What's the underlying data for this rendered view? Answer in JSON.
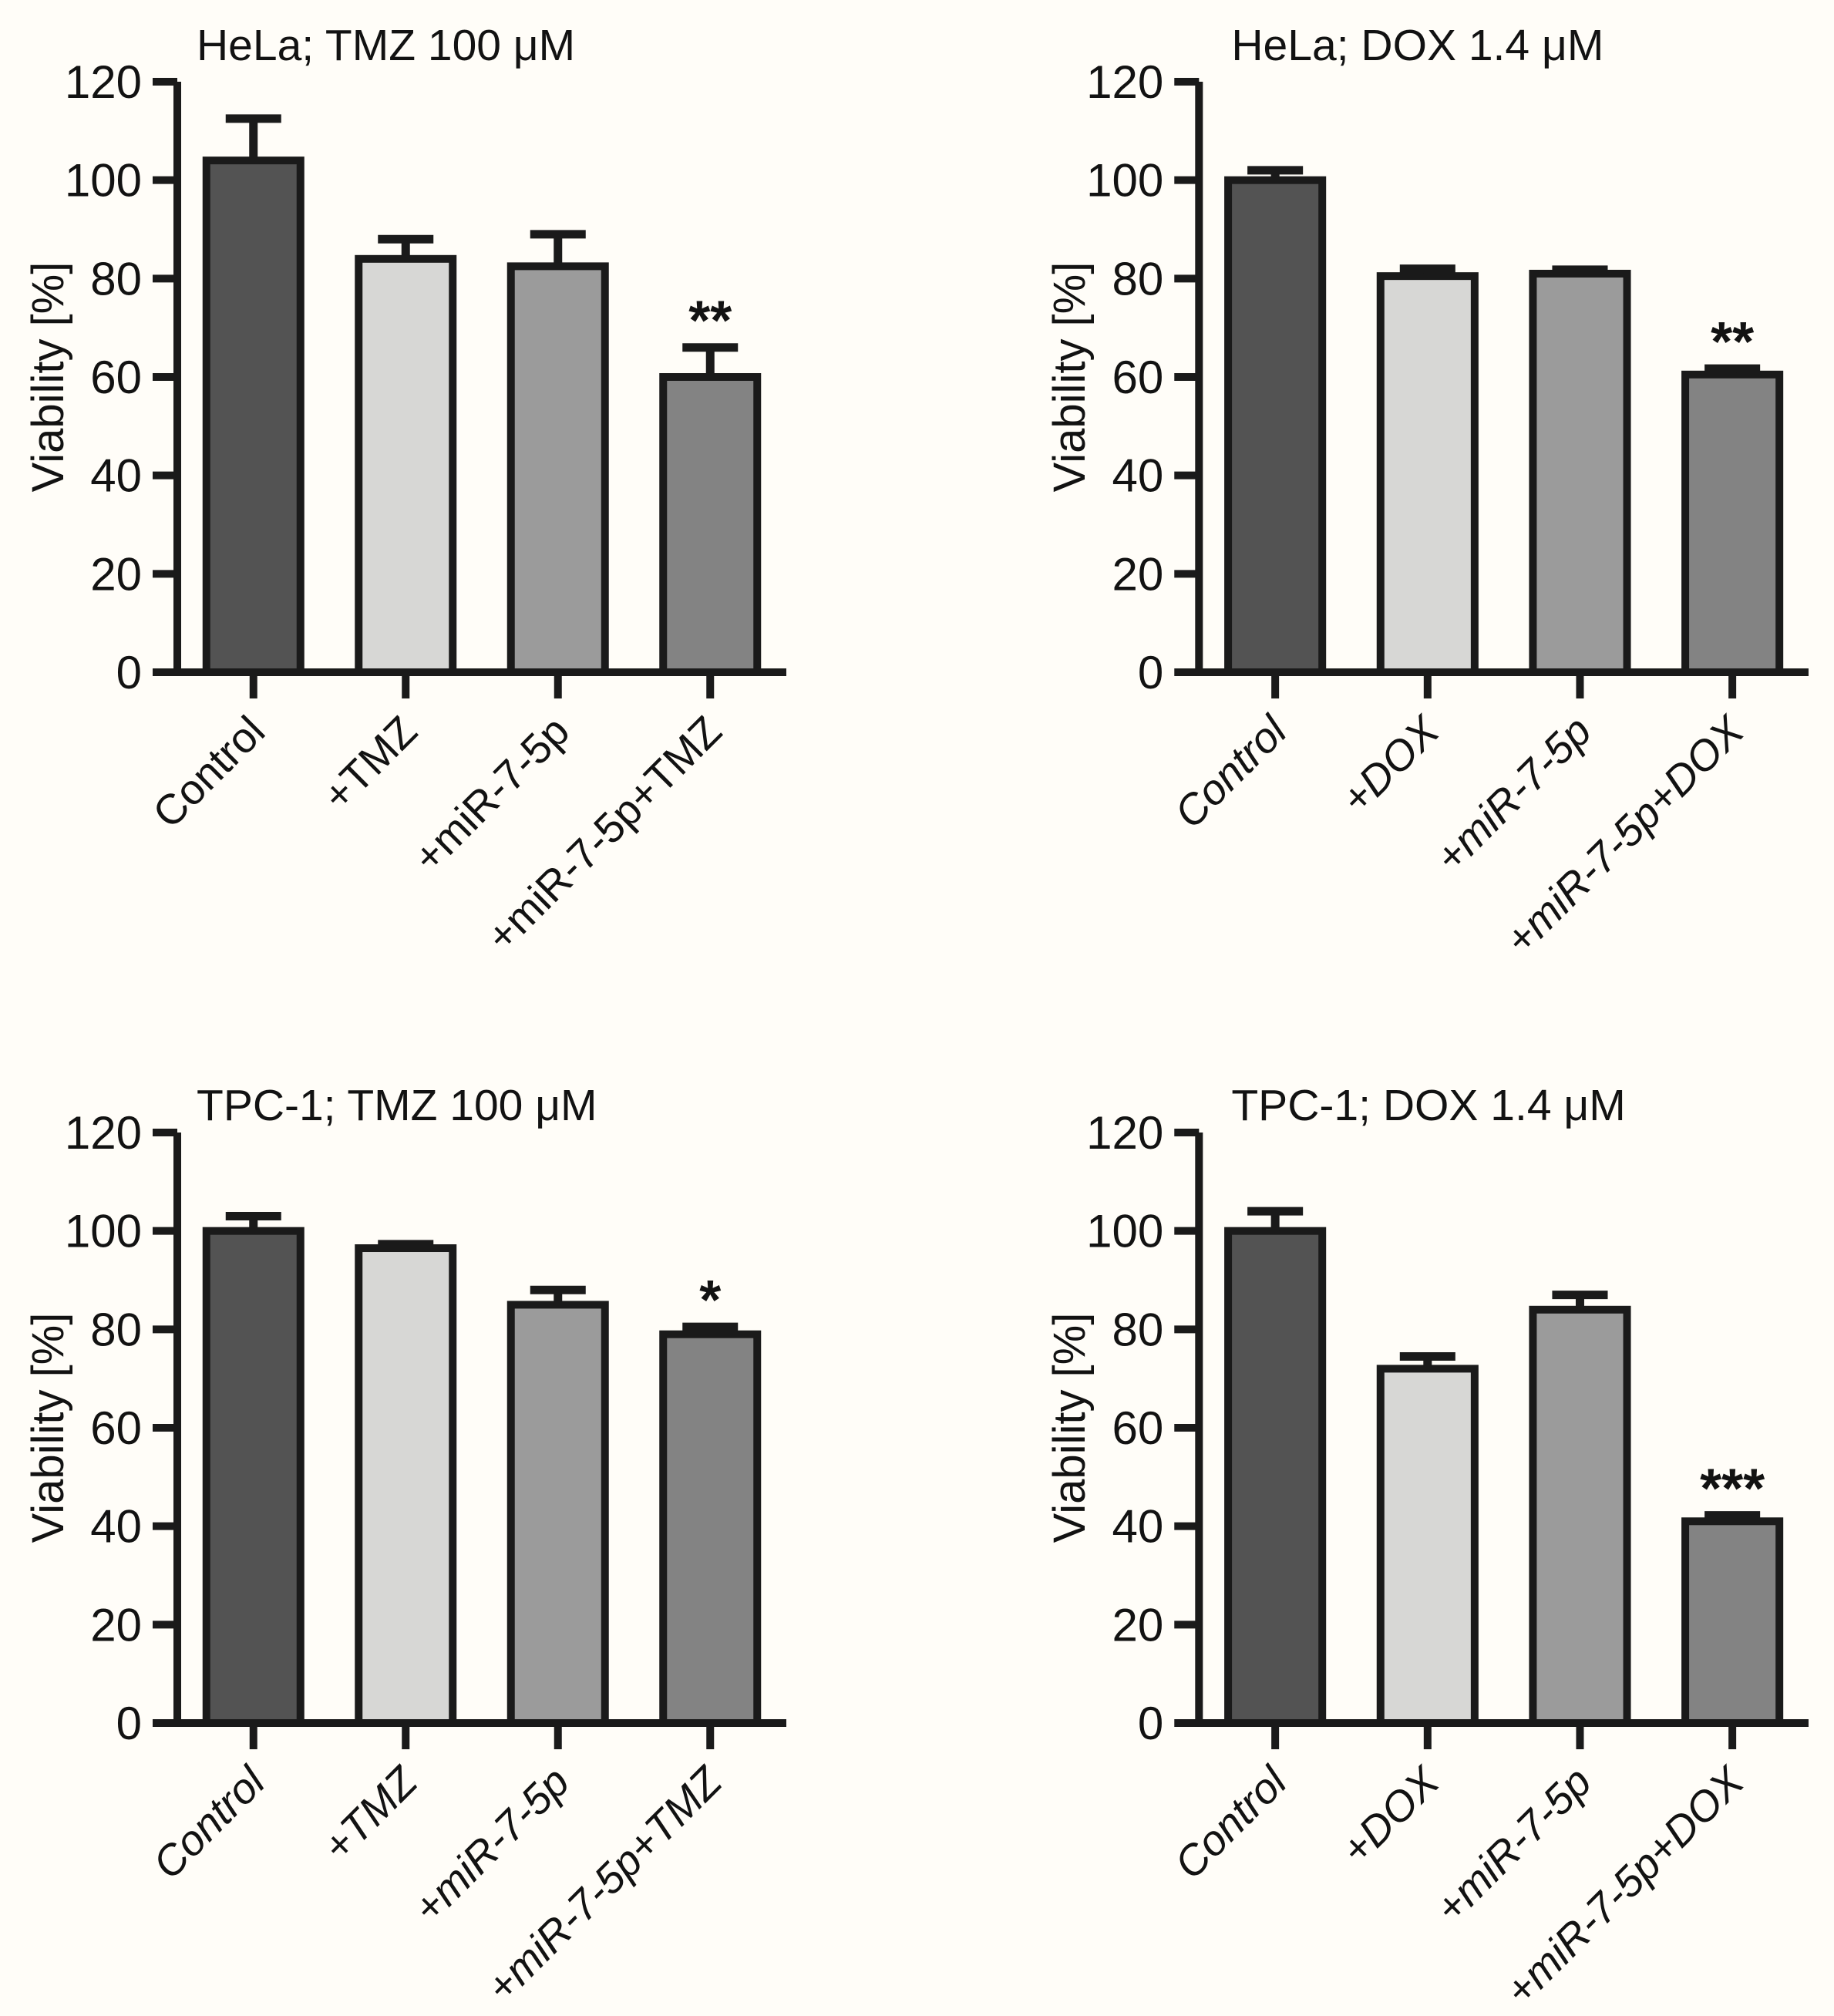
{
  "figure": {
    "background": "#fffdf8",
    "ylabel": "Viability [%]"
  },
  "style": {
    "bar_colors": [
      "#535353",
      "#d7d7d5",
      "#9b9b9b",
      "#838383"
    ],
    "bar_outline": "#1a1a1a",
    "axis_color": "#1a1a1a",
    "text_color": "#121212",
    "background": "#fffdf8"
  },
  "chart_data": [
    {
      "type": "bar",
      "title": "HeLa; TMZ 100 μM",
      "cell_line": "HeLa",
      "treatment": "TMZ 100 μM",
      "categories": [
        "Control",
        "+TMZ",
        "+miR-7-5p",
        "+miR-7-5p+TMZ"
      ],
      "values": [
        104,
        84,
        82.5,
        60
      ],
      "errors_plus": [
        8.5,
        4,
        6.5,
        6
      ],
      "significance": [
        "",
        "",
        "",
        "**"
      ],
      "xlabel": "",
      "ylabel": "Viability [%]",
      "ylim": [
        0,
        120
      ],
      "yticks": [
        0,
        20,
        40,
        60,
        80,
        100,
        120
      ],
      "grid": false,
      "legend": "none",
      "labels_italic": false
    },
    {
      "type": "bar",
      "title": "HeLa; DOX 1.4 μM",
      "cell_line": "HeLa",
      "treatment": "DOX 1.4 μM",
      "categories": [
        "Control",
        "+DOX",
        "+miR-7-5p",
        "+miR-7-5p+DOX"
      ],
      "values": [
        100,
        80.5,
        81,
        60.5
      ],
      "errors_plus": [
        2,
        1.5,
        0.8,
        1.2
      ],
      "significance": [
        "",
        "",
        "",
        "**"
      ],
      "xlabel": "",
      "ylabel": "Viability [%]",
      "ylim": [
        0,
        120
      ],
      "yticks": [
        0,
        20,
        40,
        60,
        80,
        100,
        120
      ],
      "grid": false,
      "legend": "none",
      "labels_italic": true
    },
    {
      "type": "bar",
      "title": "TPC-1; TMZ 100 μM",
      "cell_line": "TPC-1",
      "treatment": "TMZ 100 μM",
      "categories": [
        "Control",
        "+TMZ",
        "+miR-7-5p",
        "+miR-7-5p+TMZ"
      ],
      "values": [
        100,
        96.5,
        85,
        79
      ],
      "errors_plus": [
        3,
        0.8,
        3,
        1.5
      ],
      "significance": [
        "",
        "",
        "",
        "*"
      ],
      "xlabel": "",
      "ylabel": "Viability [%]",
      "ylim": [
        0,
        120
      ],
      "yticks": [
        0,
        20,
        40,
        60,
        80,
        100,
        120
      ],
      "grid": false,
      "legend": "none",
      "labels_italic": true
    },
    {
      "type": "bar",
      "title": "TPC-1; DOX 1.4 μM",
      "cell_line": "TPC-1",
      "treatment": "DOX 1.4 μM",
      "categories": [
        "Control",
        "+DOX",
        "+miR-7-5p",
        "+miR-7-5p+DOX"
      ],
      "values": [
        100,
        72,
        84,
        41
      ],
      "errors_plus": [
        4,
        2.5,
        3,
        1.2
      ],
      "significance": [
        "",
        "",
        "",
        "***"
      ],
      "xlabel": "",
      "ylabel": "Viability [%]",
      "ylim": [
        0,
        120
      ],
      "yticks": [
        0,
        20,
        40,
        60,
        80,
        100,
        120
      ],
      "grid": false,
      "legend": "none",
      "labels_italic": true
    }
  ]
}
